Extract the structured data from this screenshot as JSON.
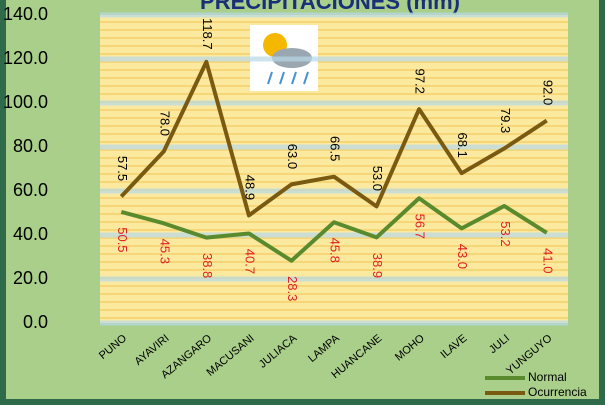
{
  "chart_data": {
    "type": "line",
    "title": "PRECIPITACIONES (mm)",
    "categories": [
      "PUNO",
      "AYAVIRI",
      "AZANGARO",
      "MACUSANI",
      "JULIACA",
      "LAMPA",
      "HUANCANE",
      "MOHO",
      "ILAVE",
      "JULI",
      "YUNGUYO"
    ],
    "series": [
      {
        "name": "Normal",
        "color": "#5a8a2e",
        "label_color": "#e02020",
        "values": [
          50.5,
          45.3,
          38.8,
          40.7,
          28.3,
          45.8,
          38.9,
          56.7,
          43.0,
          53.2,
          41.0
        ],
        "value_labels": [
          "50.5",
          "45.3",
          "38.8",
          "40.7",
          "28.3",
          "45.8",
          "38.9",
          "56.7",
          "43.0",
          "53.2",
          "41.0"
        ]
      },
      {
        "name": "Ocurrencia",
        "color": "#7a5a10",
        "label_color": "#000000",
        "values": [
          57.5,
          78.0,
          118.7,
          48.9,
          63.0,
          66.5,
          53.0,
          97.2,
          68.1,
          79.3,
          92.0
        ],
        "value_labels": [
          "57.5",
          "78.0",
          "118.7",
          "48.9",
          "63.0",
          "66.5",
          "53.0",
          "97.2",
          "68.1",
          "79.3",
          "92.0"
        ]
      }
    ],
    "ylim": [
      0,
      140
    ],
    "yticks": [
      {
        "value": 0,
        "label": "0.0"
      },
      {
        "value": 20,
        "label": "20.0"
      },
      {
        "value": 40,
        "label": "40.0"
      },
      {
        "value": 60,
        "label": "60.0"
      },
      {
        "value": 80,
        "label": "80.0"
      },
      {
        "value": 100,
        "label": "100.0"
      },
      {
        "value": 120,
        "label": "120.0"
      },
      {
        "value": 140,
        "label": "140.0"
      }
    ],
    "grid": true
  }
}
